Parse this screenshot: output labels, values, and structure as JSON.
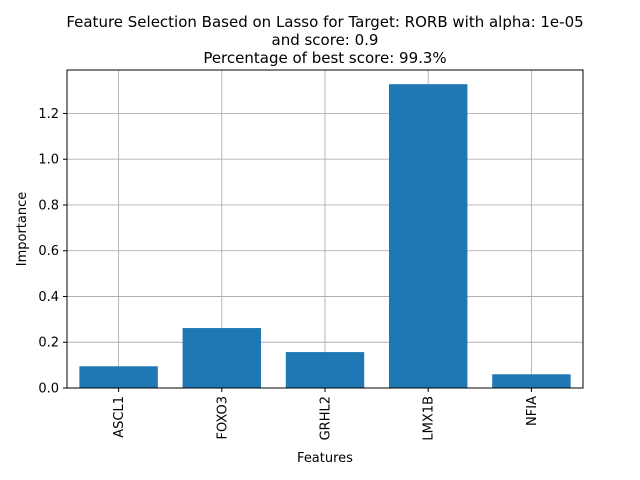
{
  "chart_data": {
    "type": "bar",
    "title_lines": [
      "Feature Selection Based on Lasso for Target: RORB with alpha: 1e-05",
      "and score: 0.9",
      "Percentage of best score: 99.3%"
    ],
    "xlabel": "Features",
    "ylabel": "Importance",
    "categories": [
      "ASCL1",
      "FOXO3",
      "GRHL2",
      "LMX1B",
      "NFIA"
    ],
    "values": [
      0.095,
      0.262,
      0.157,
      1.328,
      0.06
    ],
    "ylim": [
      0,
      1.39
    ],
    "yticks": [
      0.0,
      0.2,
      0.4,
      0.6,
      0.8,
      1.0,
      1.2
    ],
    "ytick_labels": [
      "0.0",
      "0.2",
      "0.4",
      "0.6",
      "0.8",
      "1.0",
      "1.2"
    ],
    "grid": true,
    "bar_color": "#1f77b4"
  }
}
